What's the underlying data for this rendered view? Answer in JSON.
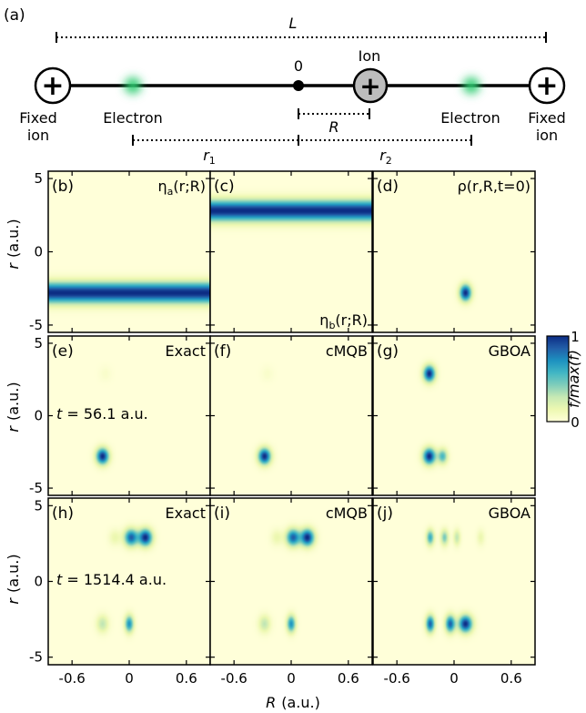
{
  "schematic": {
    "panel_label": "(a)",
    "length_label": "L",
    "origin_label": "0",
    "ion_label": "Ion",
    "R_label": "R",
    "left_fixed_label": [
      "Fixed",
      "ion"
    ],
    "right_fixed_label": [
      "Fixed",
      "ion"
    ],
    "left_electron_label": "Electron",
    "right_electron_label": "Electron",
    "r1_label": "r",
    "r1_sub": "1",
    "r2_label": "r",
    "r2_sub": "2",
    "plus_symbol": "+"
  },
  "axes": {
    "xlabel_var": "R",
    "xlabel_unit": "(a.u.)",
    "ylabel_var": "r",
    "ylabel_unit": "(a.u.)",
    "x_ticks": [
      "-0.6",
      "0",
      "0.6"
    ],
    "x_tick_values": [
      -0.6,
      0,
      0.6
    ],
    "y_ticks": [
      "5",
      "0",
      "-5"
    ],
    "y_tick_values": [
      5,
      0,
      -5
    ],
    "xlim": [
      -0.85,
      0.85
    ],
    "ylim": [
      -5.5,
      5.5
    ]
  },
  "colorbar": {
    "label": "f/max(f)",
    "ticks": [
      "1",
      "0"
    ],
    "range": [
      0,
      1
    ],
    "colors": [
      "#ffffd9",
      "#edf8b1",
      "#c7e9b4",
      "#7fcdbb",
      "#41b6c4",
      "#1d91c0",
      "#225ea8",
      "#0c2c84"
    ]
  },
  "chart_data": {
    "type": "heatmap",
    "rows": [
      {
        "panels": [
          {
            "id": "b",
            "label": "(b)",
            "title_prefix": "η",
            "title_sub": "a",
            "title_suffix": "(r;R)",
            "title_pos": "top-right",
            "band": {
              "r": -2.8,
              "width": 0.7,
              "intensity": 1.0
            }
          },
          {
            "id": "c",
            "label": "(c)",
            "title_prefix": "η",
            "title_sub": "b",
            "title_suffix": "(r;R)",
            "title_pos": "bottom-right",
            "band": {
              "r": 2.8,
              "width": 0.7,
              "intensity": 1.0
            }
          },
          {
            "id": "d",
            "label": "(d)",
            "title_prefix": "ρ(",
            "title_sub": "",
            "title_suffix": "r,R,t=0)",
            "title_pos": "top-right",
            "blobs": [
              {
                "R": 0.12,
                "r": -2.8,
                "sR": 0.06,
                "sr": 0.55,
                "a": 1.0
              }
            ]
          }
        ]
      },
      {
        "time_label": "t = 56.1 a.u.",
        "time_var": "t",
        "time_text": " = 56.1 a.u.",
        "panels": [
          {
            "id": "e",
            "label": "(e)",
            "title_prefix": "Exact",
            "title_sub": "",
            "title_suffix": "",
            "title_pos": "top-right",
            "blobs": [
              {
                "R": -0.28,
                "r": -2.8,
                "sR": 0.065,
                "sr": 0.55,
                "a": 1.0
              },
              {
                "R": -0.25,
                "r": 2.9,
                "sR": 0.06,
                "sr": 0.5,
                "a": 0.05
              }
            ]
          },
          {
            "id": "f",
            "label": "(f)",
            "title_prefix": "cMQB",
            "title_sub": "",
            "title_suffix": "",
            "title_pos": "top-right",
            "blobs": [
              {
                "R": -0.28,
                "r": -2.8,
                "sR": 0.065,
                "sr": 0.55,
                "a": 1.0
              },
              {
                "R": -0.25,
                "r": 2.9,
                "sR": 0.06,
                "sr": 0.5,
                "a": 0.05
              }
            ]
          },
          {
            "id": "g",
            "label": "(g)",
            "title_prefix": "GBOA",
            "title_sub": "",
            "title_suffix": "",
            "title_pos": "top-right",
            "blobs": [
              {
                "R": -0.26,
                "r": 2.9,
                "sR": 0.06,
                "sr": 0.55,
                "a": 1.0
              },
              {
                "R": -0.26,
                "r": -2.8,
                "sR": 0.065,
                "sr": 0.55,
                "a": 1.0
              },
              {
                "R": -0.12,
                "r": -2.8,
                "sR": 0.05,
                "sr": 0.5,
                "a": 0.55
              }
            ]
          }
        ]
      },
      {
        "time_label": "t = 1514.4 a.u.",
        "time_var": "t",
        "time_text": " = 1514.4 a.u.",
        "panels": [
          {
            "id": "h",
            "label": "(h)",
            "title_prefix": "Exact",
            "title_sub": "",
            "title_suffix": "",
            "title_pos": "top-right",
            "blobs": [
              {
                "R": 0.02,
                "r": 2.9,
                "sR": 0.07,
                "sr": 0.55,
                "a": 0.85
              },
              {
                "R": 0.17,
                "r": 2.9,
                "sR": 0.07,
                "sr": 0.55,
                "a": 1.0
              },
              {
                "R": -0.15,
                "r": 2.9,
                "sR": 0.06,
                "sr": 0.5,
                "a": 0.15
              },
              {
                "R": -0.28,
                "r": -2.8,
                "sR": 0.06,
                "sr": 0.55,
                "a": 0.3
              },
              {
                "R": 0.0,
                "r": -2.8,
                "sR": 0.045,
                "sr": 0.55,
                "a": 0.7
              }
            ]
          },
          {
            "id": "i",
            "label": "(i)",
            "title_prefix": "cMQB",
            "title_sub": "",
            "title_suffix": "",
            "title_pos": "top-right",
            "blobs": [
              {
                "R": 0.02,
                "r": 2.9,
                "sR": 0.07,
                "sr": 0.55,
                "a": 0.85
              },
              {
                "R": 0.17,
                "r": 2.9,
                "sR": 0.07,
                "sr": 0.55,
                "a": 1.0
              },
              {
                "R": -0.15,
                "r": 2.9,
                "sR": 0.06,
                "sr": 0.5,
                "a": 0.15
              },
              {
                "R": -0.28,
                "r": -2.8,
                "sR": 0.06,
                "sr": 0.55,
                "a": 0.3
              },
              {
                "R": 0.0,
                "r": -2.8,
                "sR": 0.045,
                "sr": 0.55,
                "a": 0.7
              }
            ]
          },
          {
            "id": "j",
            "label": "(j)",
            "title_prefix": "GBOA",
            "title_sub": "",
            "title_suffix": "",
            "title_pos": "top-right",
            "blobs": [
              {
                "R": -0.25,
                "r": 2.9,
                "sR": 0.04,
                "sr": 0.5,
                "a": 0.6
              },
              {
                "R": -0.1,
                "r": 2.9,
                "sR": 0.04,
                "sr": 0.5,
                "a": 0.45
              },
              {
                "R": 0.03,
                "r": 2.9,
                "sR": 0.035,
                "sr": 0.5,
                "a": 0.3
              },
              {
                "R": 0.28,
                "r": 2.9,
                "sR": 0.04,
                "sr": 0.5,
                "a": 0.15
              },
              {
                "R": -0.25,
                "r": -2.8,
                "sR": 0.045,
                "sr": 0.55,
                "a": 0.85
              },
              {
                "R": -0.04,
                "r": -2.8,
                "sR": 0.05,
                "sr": 0.55,
                "a": 0.85
              },
              {
                "R": 0.12,
                "r": -2.8,
                "sR": 0.07,
                "sr": 0.55,
                "a": 1.0
              }
            ]
          }
        ]
      }
    ]
  }
}
